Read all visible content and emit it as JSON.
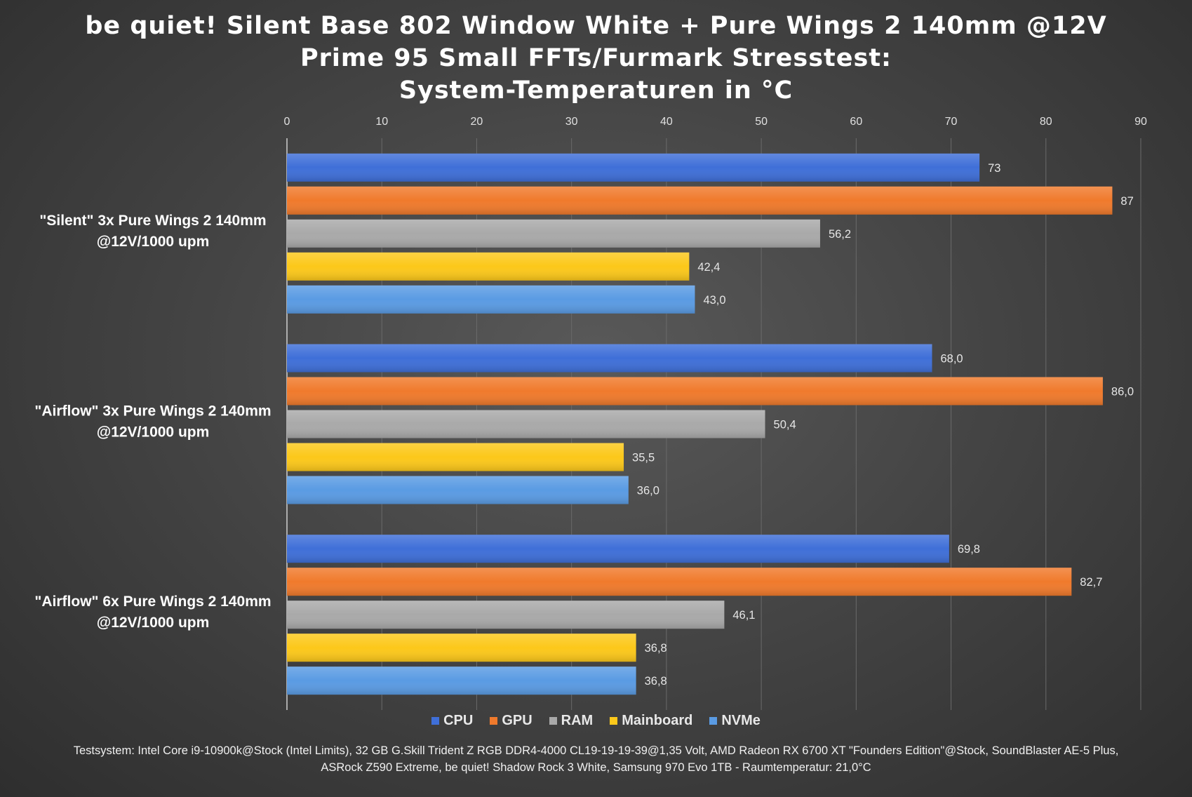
{
  "chart_data": {
    "type": "bar",
    "orientation": "horizontal",
    "title_lines": [
      "be quiet! Silent Base 802 Window White + Pure Wings 2 140mm @12V",
      "Prime 95 Small FFTs/Furmark Stresstest:",
      "System-Temperaturen in °C"
    ],
    "categories": [
      "\"Silent\" 3x Pure Wings 2 140mm @12V/1000 upm",
      "\"Airflow\" 3x Pure Wings 2 140mm @12V/1000 upm",
      "\"Airflow\" 6x Pure Wings 2 140mm @12V/1000 upm"
    ],
    "category_lines": [
      [
        "\"Silent\" 3x Pure Wings 2 140mm",
        "@12V/1000 upm"
      ],
      [
        "\"Airflow\" 3x Pure Wings 2 140mm",
        "@12V/1000 upm"
      ],
      [
        "\"Airflow\" 6x Pure Wings 2 140mm",
        "@12V/1000 upm"
      ]
    ],
    "series": [
      {
        "name": "CPU",
        "color": "#3f6fd8",
        "values": [
          73,
          68.0,
          69.8
        ],
        "labels": [
          "73",
          "68,0",
          "69,8"
        ]
      },
      {
        "name": "GPU",
        "color": "#f07a2c",
        "values": [
          87,
          86.0,
          82.7
        ],
        "labels": [
          "87",
          "86,0",
          "82,7"
        ]
      },
      {
        "name": "RAM",
        "color": "#a9a9a9",
        "values": [
          56.2,
          50.4,
          46.1
        ],
        "labels": [
          "56,2",
          "50,4",
          "46,1"
        ]
      },
      {
        "name": "Mainboard",
        "color": "#fcc81a",
        "values": [
          42.4,
          35.5,
          36.8
        ],
        "labels": [
          "42,4",
          "35,5",
          "36,8"
        ]
      },
      {
        "name": "NVMe",
        "color": "#5a9be3",
        "values": [
          43.0,
          36.0,
          36.8
        ],
        "labels": [
          "43,0",
          "36,0",
          "36,8"
        ]
      }
    ],
    "xlim": [
      0,
      90
    ],
    "xticks": [
      "0",
      "10",
      "20",
      "30",
      "40",
      "50",
      "60",
      "70",
      "80",
      "90"
    ],
    "x_axis_position": "top",
    "grid": true,
    "legend": "bottom"
  },
  "footnote": [
    "Testsystem: Intel Core i9-10900k@Stock (Intel Limits), 32 GB G.Skill Trident Z RGB DDR4-4000 CL19-19-19-39@1,35 Volt, AMD Radeon RX 6700 XT \"Founders Edition\"@Stock, SoundBlaster AE-5 Plus,",
    "ASRock Z590 Extreme, be quiet! Shadow Rock 3 White, Samsung 970 Evo 1TB - Raumtemperatur: 21,0°C"
  ]
}
